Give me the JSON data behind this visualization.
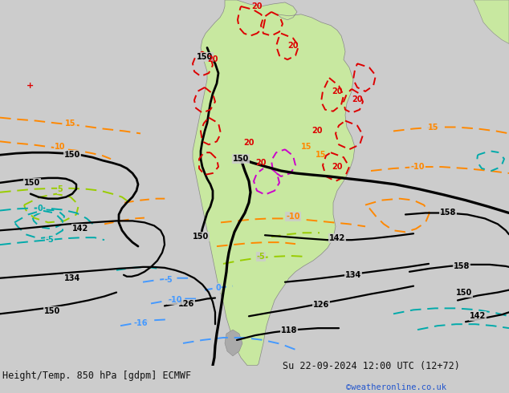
{
  "title_left": "Height/Temp. 850 hPa [gdpm] ECMWF",
  "title_right": "Su 22-09-2024 12:00 UTC (12+72)",
  "credit": "©weatheronline.co.uk",
  "bg_color": "#cccccc",
  "land_color": "#c8e8a0",
  "border_color": "#888888",
  "text_color": "#111111",
  "credit_color": "#2255cc",
  "title_fontsize": 8.5,
  "credit_fontsize": 7.5,
  "fig_width": 6.34,
  "fig_height": 4.9,
  "dpi": 100,
  "black_lw": 1.8,
  "color_lw": 1.4,
  "black": "#000000",
  "orange": "#ff8800",
  "lime": "#99cc00",
  "teal": "#00aaaa",
  "blue": "#4499ff",
  "red": "#dd0000",
  "magenta": "#cc00cc"
}
